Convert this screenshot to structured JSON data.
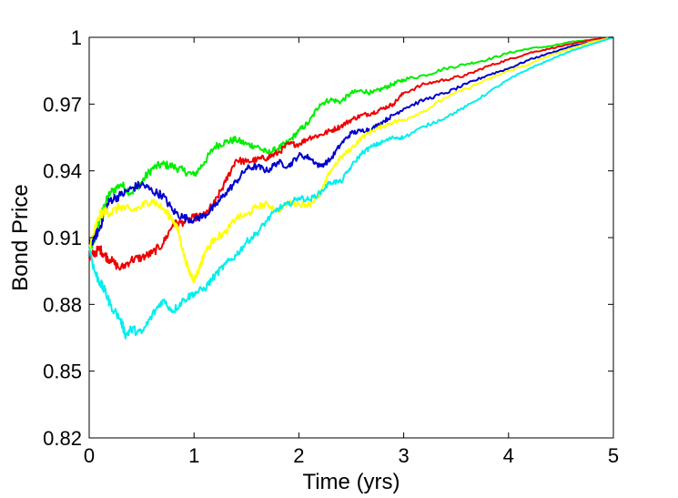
{
  "chart_data": {
    "type": "line",
    "title": "",
    "xlabel": "Time (yrs)",
    "ylabel": "Bond Price",
    "xlim": [
      0,
      5
    ],
    "ylim": [
      0.82,
      1
    ],
    "xticks": [
      0,
      1,
      2,
      3,
      4,
      5
    ],
    "xtick_labels": [
      "0",
      "1",
      "2",
      "3",
      "4",
      "5"
    ],
    "yticks": [
      0.82,
      0.85,
      0.88,
      0.91,
      0.94,
      0.97,
      1
    ],
    "ytick_labels": [
      "0.82",
      "0.85",
      "0.88",
      "0.91",
      "0.94",
      "0.97",
      "1"
    ],
    "grid": false,
    "legend": "none",
    "series": [
      {
        "color": "#00ee00",
        "x": [
          0,
          0.05,
          0.1,
          0.15,
          0.2,
          0.3,
          0.4,
          0.5,
          0.6,
          0.7,
          0.8,
          0.9,
          1.0,
          1.1,
          1.2,
          1.3,
          1.4,
          1.5,
          1.6,
          1.7,
          1.8,
          1.9,
          2.0,
          2.1,
          2.2,
          2.3,
          2.4,
          2.5,
          2.6,
          2.7,
          2.8,
          2.9,
          3.0,
          3.2,
          3.4,
          3.6,
          3.8,
          4.0,
          4.2,
          4.4,
          4.6,
          4.8,
          5.0
        ],
        "y": [
          0.905,
          0.908,
          0.918,
          0.925,
          0.93,
          0.934,
          0.93,
          0.935,
          0.941,
          0.943,
          0.942,
          0.94,
          0.938,
          0.944,
          0.951,
          0.953,
          0.954,
          0.952,
          0.951,
          0.948,
          0.95,
          0.953,
          0.958,
          0.962,
          0.97,
          0.972,
          0.971,
          0.975,
          0.976,
          0.975,
          0.977,
          0.979,
          0.981,
          0.983,
          0.986,
          0.988,
          0.99,
          0.993,
          0.995,
          0.996,
          0.998,
          0.999,
          1.0
        ]
      },
      {
        "color": "#ee0000",
        "x": [
          0,
          0.05,
          0.1,
          0.15,
          0.2,
          0.3,
          0.4,
          0.5,
          0.6,
          0.7,
          0.8,
          0.9,
          1.0,
          1.1,
          1.2,
          1.3,
          1.4,
          1.5,
          1.6,
          1.7,
          1.8,
          1.9,
          2.0,
          2.1,
          2.2,
          2.3,
          2.4,
          2.5,
          2.6,
          2.7,
          2.8,
          2.9,
          3.0,
          3.2,
          3.4,
          3.6,
          3.8,
          4.0,
          4.2,
          4.4,
          4.6,
          4.8,
          5.0
        ],
        "y": [
          0.901,
          0.903,
          0.905,
          0.902,
          0.9,
          0.896,
          0.9,
          0.901,
          0.903,
          0.907,
          0.916,
          0.917,
          0.919,
          0.92,
          0.926,
          0.935,
          0.945,
          0.944,
          0.945,
          0.946,
          0.948,
          0.952,
          0.952,
          0.955,
          0.956,
          0.958,
          0.96,
          0.963,
          0.965,
          0.966,
          0.968,
          0.97,
          0.975,
          0.979,
          0.981,
          0.983,
          0.987,
          0.99,
          0.993,
          0.995,
          0.997,
          0.999,
          1.0
        ]
      },
      {
        "color": "#0000cc",
        "x": [
          0,
          0.05,
          0.1,
          0.15,
          0.2,
          0.3,
          0.4,
          0.5,
          0.6,
          0.7,
          0.8,
          0.9,
          1.0,
          1.1,
          1.2,
          1.3,
          1.4,
          1.5,
          1.6,
          1.7,
          1.8,
          1.9,
          2.0,
          2.1,
          2.2,
          2.3,
          2.4,
          2.5,
          2.6,
          2.7,
          2.8,
          2.9,
          3.0,
          3.2,
          3.4,
          3.6,
          3.8,
          4.0,
          4.2,
          4.4,
          4.6,
          4.8,
          5.0
        ],
        "y": [
          0.906,
          0.91,
          0.914,
          0.922,
          0.927,
          0.929,
          0.932,
          0.934,
          0.931,
          0.929,
          0.922,
          0.919,
          0.918,
          0.92,
          0.924,
          0.93,
          0.935,
          0.941,
          0.942,
          0.94,
          0.944,
          0.942,
          0.947,
          0.946,
          0.942,
          0.945,
          0.952,
          0.957,
          0.958,
          0.959,
          0.962,
          0.965,
          0.968,
          0.972,
          0.975,
          0.979,
          0.983,
          0.986,
          0.99,
          0.993,
          0.996,
          0.998,
          1.0
        ]
      },
      {
        "color": "#ffff00",
        "x": [
          0,
          0.05,
          0.1,
          0.15,
          0.2,
          0.3,
          0.4,
          0.5,
          0.6,
          0.7,
          0.8,
          0.85,
          0.9,
          0.95,
          1.0,
          1.05,
          1.1,
          1.2,
          1.3,
          1.4,
          1.5,
          1.6,
          1.7,
          1.8,
          1.9,
          2.0,
          2.1,
          2.2,
          2.3,
          2.4,
          2.5,
          2.6,
          2.7,
          2.8,
          2.9,
          3.0,
          3.2,
          3.4,
          3.6,
          3.8,
          4.0,
          4.2,
          4.4,
          4.6,
          4.8,
          5.0
        ],
        "y": [
          0.905,
          0.913,
          0.92,
          0.922,
          0.921,
          0.924,
          0.922,
          0.924,
          0.927,
          0.923,
          0.918,
          0.913,
          0.903,
          0.895,
          0.891,
          0.896,
          0.903,
          0.91,
          0.912,
          0.919,
          0.92,
          0.924,
          0.925,
          0.922,
          0.926,
          0.925,
          0.925,
          0.929,
          0.94,
          0.946,
          0.95,
          0.955,
          0.958,
          0.96,
          0.962,
          0.963,
          0.967,
          0.973,
          0.977,
          0.981,
          0.985,
          0.988,
          0.992,
          0.995,
          0.998,
          1.0
        ]
      },
      {
        "color": "#00eeee",
        "x": [
          0,
          0.05,
          0.1,
          0.15,
          0.2,
          0.3,
          0.35,
          0.4,
          0.5,
          0.6,
          0.7,
          0.8,
          0.9,
          1.0,
          1.1,
          1.2,
          1.3,
          1.4,
          1.5,
          1.6,
          1.7,
          1.8,
          1.9,
          2.0,
          2.1,
          2.2,
          2.3,
          2.4,
          2.5,
          2.6,
          2.7,
          2.8,
          2.9,
          3.0,
          3.2,
          3.4,
          3.6,
          3.8,
          4.0,
          4.2,
          4.4,
          4.6,
          4.8,
          5.0
        ],
        "y": [
          0.906,
          0.895,
          0.89,
          0.886,
          0.88,
          0.873,
          0.866,
          0.869,
          0.867,
          0.875,
          0.882,
          0.877,
          0.882,
          0.885,
          0.887,
          0.893,
          0.898,
          0.902,
          0.908,
          0.912,
          0.918,
          0.923,
          0.925,
          0.928,
          0.927,
          0.93,
          0.935,
          0.935,
          0.942,
          0.948,
          0.951,
          0.953,
          0.955,
          0.955,
          0.96,
          0.964,
          0.969,
          0.975,
          0.981,
          0.986,
          0.99,
          0.994,
          0.997,
          1.0
        ]
      }
    ]
  }
}
